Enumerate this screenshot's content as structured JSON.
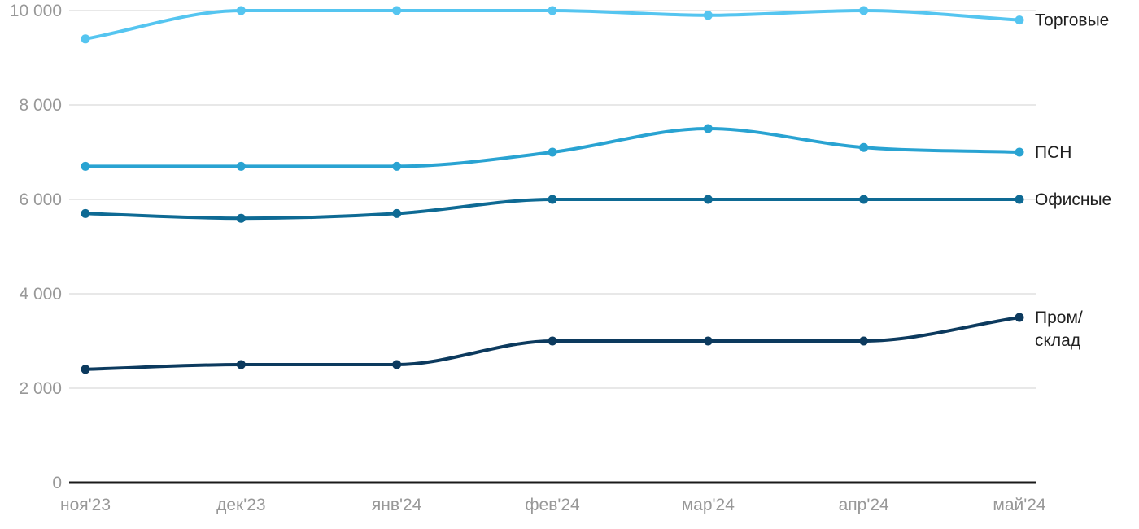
{
  "chart_data": {
    "type": "line",
    "categories": [
      "ноя'23",
      "дек'23",
      "янв'24",
      "фев'24",
      "мар'24",
      "апр'24",
      "май'24"
    ],
    "series": [
      {
        "name": "Торговые",
        "legend_lines": [
          "Торговые"
        ],
        "color": "#55C5F0",
        "values": [
          9400,
          10000,
          10000,
          10000,
          9900,
          10000,
          9800
        ]
      },
      {
        "name": "ПСН",
        "legend_lines": [
          "ПСН"
        ],
        "color": "#29A3D2",
        "values": [
          6700,
          6700,
          6700,
          7000,
          7500,
          7100,
          7000
        ]
      },
      {
        "name": "Офисные",
        "legend_lines": [
          "Офисные"
        ],
        "color": "#0E6A94",
        "values": [
          5700,
          5600,
          5700,
          6000,
          6000,
          6000,
          6000
        ]
      },
      {
        "name": "Пром/склад",
        "legend_lines": [
          "Пром/",
          "склад"
        ],
        "color": "#0C3A5E",
        "values": [
          2400,
          2500,
          2500,
          3000,
          3000,
          3000,
          3500
        ]
      }
    ],
    "title": "",
    "xlabel": "",
    "ylabel": "",
    "ylim": [
      0,
      10000
    ],
    "yticks": [
      {
        "value": 0,
        "label": "0"
      },
      {
        "value": 2000,
        "label": "2 000"
      },
      {
        "value": 4000,
        "label": "4 000"
      },
      {
        "value": 6000,
        "label": "6 000"
      },
      {
        "value": 8000,
        "label": "8 000"
      },
      {
        "value": 10000,
        "label": "10 000"
      }
    ],
    "grid": true,
    "legend_position": "right",
    "colors": {
      "gridline": "#E8E8E8",
      "axis_line": "#1A1A1A",
      "tick_label": "#989898",
      "legend_text": "#1F1F1F"
    }
  }
}
